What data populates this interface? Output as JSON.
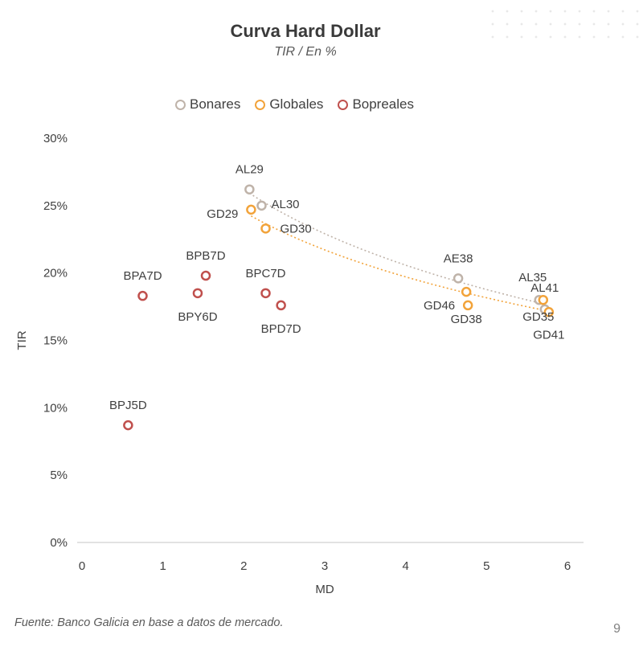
{
  "page_number": "9",
  "source": "Fuente: Banco Galicia en base a datos de mercado.",
  "colors": {
    "Bonares": "#bfb3a9",
    "Globales": "#f2a33a",
    "Bopreales": "#c0504d"
  },
  "chart_data": {
    "type": "scatter",
    "title": "Curva Hard Dollar",
    "subtitle": "TIR / En %",
    "xlabel": "MD",
    "ylabel": "TIR",
    "xlim": [
      0,
      6
    ],
    "ylim": [
      0,
      30
    ],
    "x_ticks": [
      "0",
      "1",
      "2",
      "3",
      "4",
      "5",
      "6"
    ],
    "y_ticks": [
      "0%",
      "5%",
      "10%",
      "15%",
      "20%",
      "25%",
      "30%"
    ],
    "legend_position": "top",
    "grid": false,
    "series": [
      {
        "name": "Bonares",
        "trendline": "log",
        "points": [
          {
            "label": "AL29",
            "x": 2.07,
            "y": 26.2
          },
          {
            "label": "AL30",
            "x": 2.22,
            "y": 25.0
          },
          {
            "label": "AE38",
            "x": 4.65,
            "y": 19.6
          },
          {
            "label": "AL35",
            "x": 5.65,
            "y": 18.0
          },
          {
            "label": "AL41",
            "x": 5.72,
            "y": 17.3
          }
        ]
      },
      {
        "name": "Globales",
        "trendline": "log",
        "points": [
          {
            "label": "GD29",
            "x": 2.09,
            "y": 24.7
          },
          {
            "label": "GD30",
            "x": 2.27,
            "y": 23.3
          },
          {
            "label": "GD46",
            "x": 4.75,
            "y": 18.6
          },
          {
            "label": "GD38",
            "x": 4.77,
            "y": 17.6
          },
          {
            "label": "GD35",
            "x": 5.7,
            "y": 18.0
          },
          {
            "label": "GD41",
            "x": 5.77,
            "y": 17.1
          }
        ]
      },
      {
        "name": "Bopreales",
        "trendline": "none",
        "points": [
          {
            "label": "BPJ5D",
            "x": 0.57,
            "y": 8.7
          },
          {
            "label": "BPA7D",
            "x": 0.75,
            "y": 18.3
          },
          {
            "label": "BPY6D",
            "x": 1.43,
            "y": 18.5
          },
          {
            "label": "BPB7D",
            "x": 1.53,
            "y": 19.8
          },
          {
            "label": "BPC7D",
            "x": 2.27,
            "y": 18.5
          },
          {
            "label": "BPD7D",
            "x": 2.46,
            "y": 17.6
          }
        ]
      }
    ]
  }
}
